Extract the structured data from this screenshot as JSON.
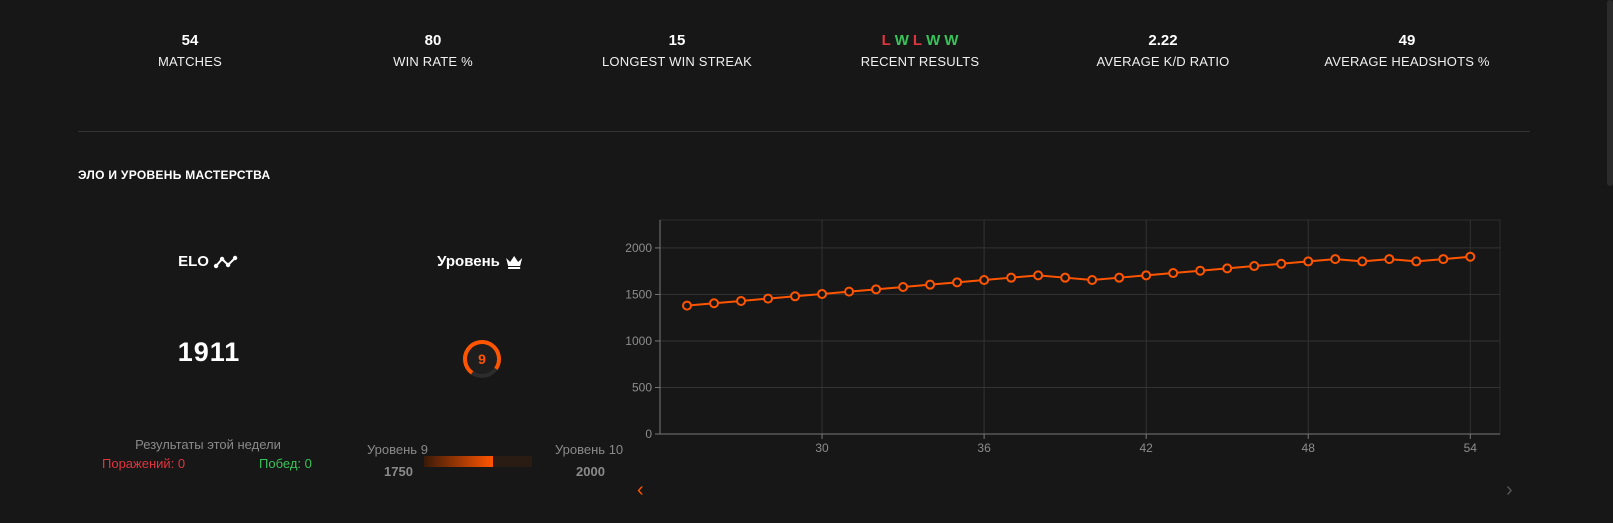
{
  "stats": {
    "matches": {
      "value": "54",
      "label": "MATCHES"
    },
    "win_rate": {
      "value": "80",
      "label": "WIN RATE %"
    },
    "longest_streak": {
      "value": "15",
      "label": "LONGEST WIN STREAK"
    },
    "recent": {
      "results": [
        "L",
        "W",
        "L",
        "W",
        "W"
      ],
      "label": "RECENT RESULTS"
    },
    "kd": {
      "value": "2.22",
      "label": "AVERAGE K/D RATIO"
    },
    "headshots": {
      "value": "49",
      "label": "AVERAGE HEADSHOTS %"
    }
  },
  "section_title": "ЭЛО И УРОВЕНЬ МАСТЕРСТВА",
  "elo": {
    "label": "ELO",
    "value": "1911",
    "icon": "elo-trend-icon"
  },
  "level": {
    "label": "Уровень",
    "value": "9",
    "icon": "crown-icon"
  },
  "week": {
    "title": "Результаты этой недели",
    "losses": "Поражений: 0",
    "wins": "Побед: 0"
  },
  "level_progress": {
    "from_label": "Уровень 9",
    "to_label": "Уровень 10",
    "from_elo": "1750",
    "to_elo": "2000",
    "fraction": 0.64
  },
  "colors": {
    "accent": "#ff5500",
    "loss": "#e0353e",
    "win": "#39c25a",
    "background": "#171717"
  },
  "chart_data": {
    "type": "line",
    "x": [
      25,
      26,
      27,
      28,
      29,
      30,
      31,
      32,
      33,
      34,
      35,
      36,
      37,
      38,
      39,
      40,
      41,
      42,
      43,
      44,
      45,
      46,
      47,
      48,
      49,
      50,
      51,
      52,
      53,
      54
    ],
    "series": [
      {
        "values": [
          1380,
          1405,
          1430,
          1455,
          1480,
          1505,
          1530,
          1555,
          1580,
          1605,
          1630,
          1655,
          1680,
          1705,
          1680,
          1655,
          1680,
          1705,
          1730,
          1755,
          1780,
          1805,
          1830,
          1855,
          1880,
          1855,
          1880,
          1855,
          1880,
          1905
        ]
      }
    ],
    "x_ticks": [
      30,
      36,
      42,
      48,
      54
    ],
    "y_ticks": [
      0,
      500,
      1000,
      1500,
      2000
    ],
    "xlim": [
      24,
      55.1
    ],
    "ylim": [
      0,
      2300
    ],
    "grid": true,
    "title": "",
    "xlabel": "",
    "ylabel": ""
  }
}
